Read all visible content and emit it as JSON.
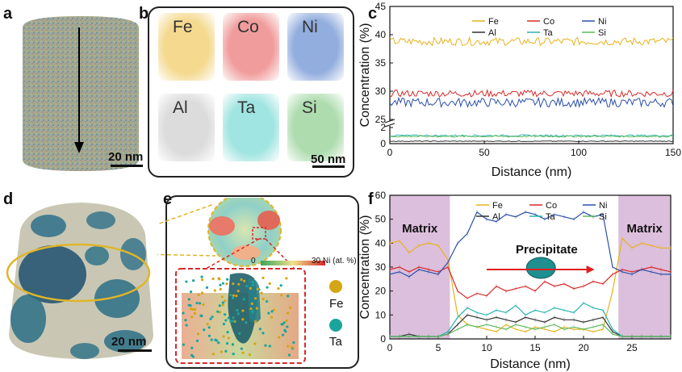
{
  "panels": {
    "a": {
      "letter": "a",
      "scale": "20 nm"
    },
    "b": {
      "letter": "b",
      "scale": "50 nm",
      "elements": [
        {
          "label": "Fe",
          "color": "#f2d27a"
        },
        {
          "label": "Co",
          "color": "#ee8a8a"
        },
        {
          "label": "Ni",
          "color": "#7f9fd8"
        },
        {
          "label": "Al",
          "color": "#d6d6d6"
        },
        {
          "label": "Ta",
          "color": "#8fe0dc"
        },
        {
          "label": "Si",
          "color": "#9fd6a0"
        }
      ]
    },
    "d": {
      "letter": "d",
      "scale": "20 nm"
    },
    "e": {
      "letter": "e",
      "colorbar_min": "0",
      "colorbar_max": "30 Ni (at. %)",
      "legend": [
        {
          "label": "Fe",
          "color": "#d4a514"
        },
        {
          "label": "Ta",
          "color": "#1aa59c"
        }
      ]
    }
  },
  "chart_data": [
    {
      "id": "c",
      "letter": "c",
      "type": "line",
      "xlabel": "Distance (nm)",
      "ylabel": "Concentration (%)",
      "xlim": [
        0,
        150
      ],
      "xticks": [
        "0",
        "50",
        "100",
        "150"
      ],
      "ylim_upper": [
        25,
        45
      ],
      "yticks_upper": [
        "25",
        "30",
        "35",
        "40",
        "45"
      ],
      "ylim_lower": [
        0,
        2
      ],
      "yticks_lower": [
        "0",
        "2"
      ],
      "series": [
        {
          "name": "Fe",
          "color": "#e6b31e",
          "mean": 38.8,
          "noise": 0.7
        },
        {
          "name": "Co",
          "color": "#d62a2a",
          "mean": 29.6,
          "noise": 0.6
        },
        {
          "name": "Ni",
          "color": "#2a4fa8",
          "mean": 28.0,
          "noise": 0.8
        },
        {
          "name": "Al",
          "color": "#333333",
          "mean": 0.3,
          "noise": 0.05
        },
        {
          "name": "Ta",
          "color": "#2bb3b0",
          "mean": 1.0,
          "noise": 0.1
        },
        {
          "name": "Si",
          "color": "#5cb85c",
          "mean": 0.9,
          "noise": 0.1
        }
      ]
    },
    {
      "id": "f",
      "letter": "f",
      "type": "line",
      "xlabel": "Distance (nm)",
      "ylabel": "Concentration (%)",
      "xlim": [
        0,
        29
      ],
      "xticks": [
        "0",
        "5",
        "10",
        "15",
        "20",
        "25"
      ],
      "ylim": [
        0,
        60
      ],
      "yticks": [
        "0",
        "10",
        "20",
        "30",
        "40",
        "50",
        "60"
      ],
      "annotations": {
        "matrix_left": "Matrix",
        "matrix_right": "Matrix",
        "precipitate": "Precipitate"
      },
      "matrix_regions": [
        [
          0,
          6.2
        ],
        [
          23.6,
          29
        ]
      ],
      "x": [
        0,
        1,
        2,
        3,
        4,
        5,
        6,
        7,
        8,
        9,
        10,
        11,
        12,
        13,
        14,
        15,
        16,
        17,
        18,
        19,
        20,
        21,
        22,
        23,
        24,
        25,
        26,
        27,
        28,
        29
      ],
      "series": [
        {
          "name": "Fe",
          "color": "#e6b31e",
          "values": [
            40,
            41,
            36,
            39,
            40,
            39,
            33,
            10,
            6,
            5,
            4,
            3,
            6,
            4,
            3,
            5,
            4,
            3,
            5,
            4,
            4,
            3,
            4,
            20,
            42,
            38,
            40,
            39,
            38,
            38
          ]
        },
        {
          "name": "Co",
          "color": "#d62a2a",
          "values": [
            29,
            30,
            28,
            30,
            29,
            28,
            30,
            20,
            17,
            19,
            18,
            22,
            20,
            21,
            22,
            20,
            24,
            22,
            23,
            21,
            22,
            24,
            23,
            27,
            29,
            28,
            29,
            30,
            29,
            28
          ]
        },
        {
          "name": "Ni",
          "color": "#2a4fa8",
          "values": [
            27,
            28,
            26,
            29,
            28,
            27,
            32,
            40,
            44,
            53,
            50,
            49,
            52,
            51,
            53,
            52,
            50,
            52,
            51,
            50,
            53,
            51,
            52,
            30,
            28,
            27,
            29,
            28,
            27,
            27
          ]
        },
        {
          "name": "Al",
          "color": "#333333",
          "values": [
            1,
            1,
            2,
            1,
            1,
            1,
            2,
            6,
            10,
            9,
            8,
            9,
            8,
            7,
            9,
            8,
            7,
            9,
            8,
            8,
            7,
            8,
            9,
            3,
            1,
            1,
            1,
            1,
            1,
            1
          ]
        },
        {
          "name": "Ta",
          "color": "#2bb3b0",
          "values": [
            1,
            1,
            1,
            1,
            1,
            1,
            3,
            9,
            13,
            11,
            10,
            12,
            11,
            14,
            10,
            12,
            11,
            13,
            12,
            11,
            15,
            13,
            12,
            4,
            1,
            1,
            1,
            1,
            1,
            1
          ]
        },
        {
          "name": "Si",
          "color": "#5cb85c",
          "values": [
            1,
            1,
            1,
            1,
            1,
            1,
            2,
            4,
            6,
            5,
            6,
            5,
            4,
            6,
            5,
            4,
            5,
            6,
            4,
            5,
            4,
            5,
            6,
            2,
            1,
            1,
            1,
            1,
            1,
            1
          ]
        }
      ]
    }
  ]
}
